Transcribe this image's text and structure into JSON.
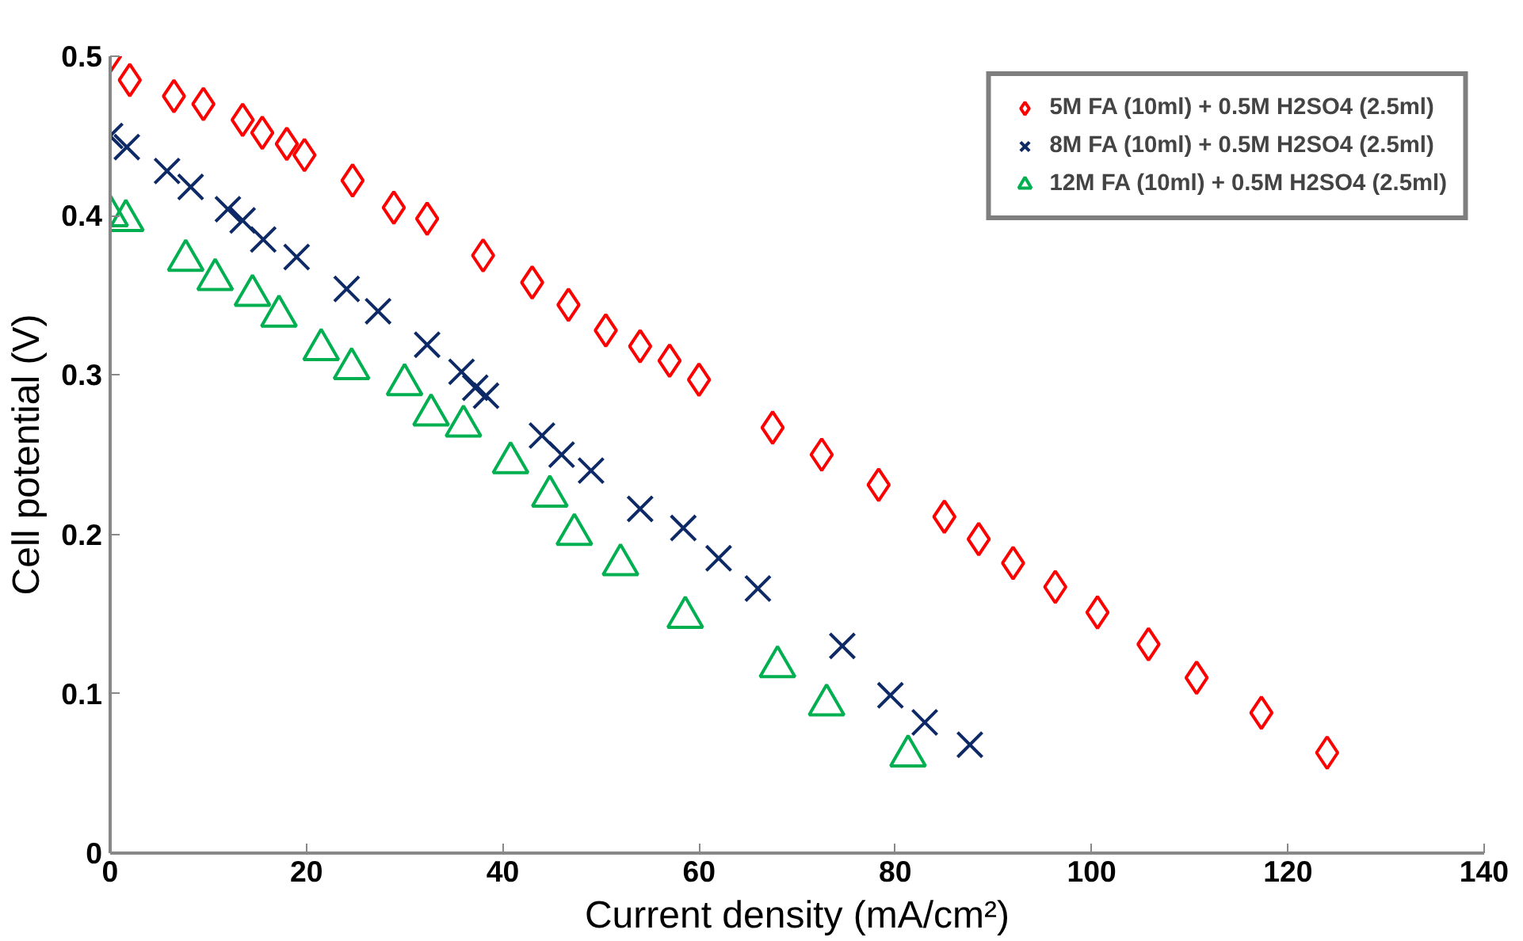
{
  "chart_data": {
    "type": "scatter",
    "xlabel": "Current density (mA/cm²)",
    "ylabel": "Cell potential (V)",
    "xlim": [
      0,
      140
    ],
    "xticks": [
      0,
      20,
      40,
      60,
      80,
      100,
      120,
      140
    ],
    "ylim": [
      0,
      0.5
    ],
    "yticks": [
      0,
      0.1,
      0.2,
      0.3,
      0.4,
      0.5
    ],
    "grid": false,
    "legend": "top right",
    "series": [
      {
        "name": "5M FA (10ml) + 0.5M H2SO4 (2.5ml)",
        "color": "#ff0000",
        "marker": "diamond",
        "x": [
          0,
          2,
          6.5,
          9.5,
          13.5,
          15.5,
          18,
          19.8,
          24.7,
          28.9,
          32.3,
          38,
          43,
          46.7,
          50.5,
          54,
          57,
          60,
          67.5,
          72.5,
          78.3,
          85,
          88.5,
          92,
          96.3,
          100.6,
          105.8,
          110.7,
          117.3,
          124
        ],
        "values": [
          0.5,
          0.485,
          0.475,
          0.47,
          0.46,
          0.452,
          0.445,
          0.438,
          0.422,
          0.405,
          0.398,
          0.375,
          0.358,
          0.344,
          0.328,
          0.318,
          0.309,
          0.297,
          0.267,
          0.25,
          0.231,
          0.211,
          0.197,
          0.182,
          0.167,
          0.151,
          0.131,
          0.11,
          0.088,
          0.063
        ]
      },
      {
        "name": "8M FA (10ml) + 0.5M H2SO4 (2.5ml)",
        "color": "#0d2a66",
        "marker": "cross",
        "x": [
          0,
          1.7,
          5.8,
          8.2,
          12,
          13.5,
          15.6,
          19,
          24.1,
          27.3,
          32.3,
          35.8,
          37.2,
          38.3,
          44,
          46,
          49,
          54,
          58.4,
          62,
          66,
          74.6,
          79.5,
          83,
          87.6
        ],
        "values": [
          0.45,
          0.443,
          0.428,
          0.418,
          0.404,
          0.397,
          0.385,
          0.374,
          0.354,
          0.34,
          0.319,
          0.302,
          0.292,
          0.287,
          0.262,
          0.25,
          0.24,
          0.216,
          0.204,
          0.185,
          0.166,
          0.13,
          0.099,
          0.082,
          0.068
        ]
      },
      {
        "name": "12M FA (10ml) + 0.5M H2SO4 (2.5ml)",
        "color": "#00b050",
        "marker": "triangle",
        "x": [
          0,
          1.6,
          7.7,
          10.7,
          14.5,
          17.2,
          21.5,
          24.6,
          30,
          32.7,
          36,
          40.8,
          44.8,
          47.3,
          52,
          58.6,
          68,
          73,
          81.3
        ],
        "values": [
          0.4,
          0.397,
          0.372,
          0.36,
          0.35,
          0.337,
          0.316,
          0.304,
          0.294,
          0.275,
          0.268,
          0.245,
          0.224,
          0.2,
          0.181,
          0.148,
          0.117,
          0.093,
          0.061
        ]
      }
    ]
  }
}
